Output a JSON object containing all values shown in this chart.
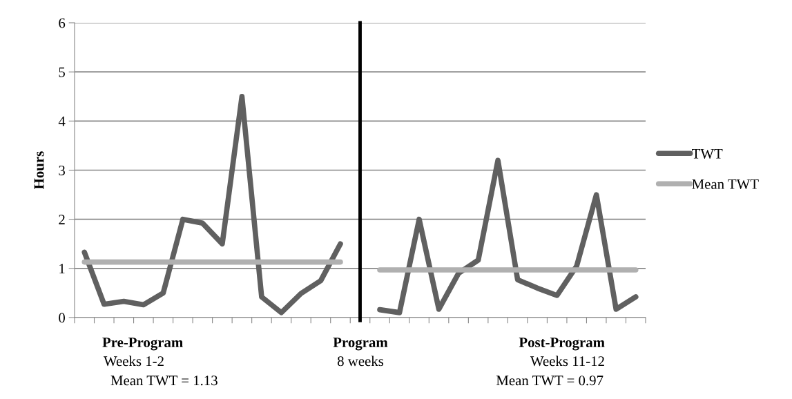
{
  "chart_data": {
    "type": "line",
    "ylabel": "Hours",
    "categories": [
      null,
      null,
      null,
      null,
      null,
      null,
      null,
      null,
      null,
      null,
      null,
      null,
      null,
      null,
      null,
      null,
      null,
      null,
      null,
      null,
      null,
      null,
      null,
      null,
      null,
      null,
      null,
      null,
      null
    ],
    "series": [
      {
        "name": "TWT",
        "color": "#606060",
        "values": [
          1.33,
          0.27,
          0.33,
          0.26,
          0.5,
          2.0,
          1.92,
          1.5,
          4.5,
          0.42,
          0.1,
          0.49,
          0.75,
          1.5,
          null,
          0.16,
          0.1,
          2.0,
          0.17,
          0.9,
          1.17,
          3.2,
          0.77,
          0.6,
          0.45,
          1.05,
          2.5,
          0.17,
          0.42
        ]
      },
      {
        "name": "Mean TWT",
        "color": "#b0b0b0",
        "values": [
          1.13,
          1.13,
          1.13,
          1.13,
          1.13,
          1.13,
          1.13,
          1.13,
          1.13,
          1.13,
          1.13,
          1.13,
          1.13,
          1.13,
          null,
          0.97,
          0.97,
          0.97,
          0.97,
          0.97,
          0.97,
          0.97,
          0.97,
          0.97,
          0.97,
          0.97,
          0.97,
          0.97,
          0.97
        ]
      }
    ],
    "ylim": [
      0,
      6
    ],
    "yticks": [
      0,
      1,
      2,
      3,
      4,
      5,
      6
    ],
    "grid": "y",
    "legend": "right",
    "marker": "none",
    "line_style": "solid",
    "annotations": [
      "Pre-Program",
      "Weeks 1-2",
      "Mean TWT = 1.13",
      "Program",
      "8 weeks",
      "Post-Program",
      "Weeks 11-12",
      "Mean TWT = 0.97"
    ]
  }
}
